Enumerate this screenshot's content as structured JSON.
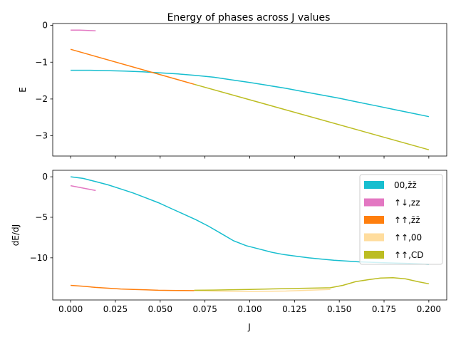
{
  "chart_data": [
    {
      "type": "line",
      "title": "Energy of phases across J values",
      "xlabel": "",
      "ylabel": "E",
      "xlim": [
        -0.01,
        0.21
      ],
      "ylim": [
        -3.55,
        0.05
      ],
      "xticks": [
        0.0,
        0.025,
        0.05,
        0.075,
        0.1,
        0.125,
        0.15,
        0.175,
        0.2
      ],
      "yticks": [
        0,
        -1,
        -2,
        -3
      ],
      "ytick_labels": [
        "0",
        "−1",
        "−2",
        "−3"
      ],
      "series": [
        {
          "color": "#17becf",
          "x": [
            0.0,
            0.01,
            0.02,
            0.03,
            0.04,
            0.05,
            0.06,
            0.07,
            0.08,
            0.09,
            0.1,
            0.11,
            0.12,
            0.13,
            0.14,
            0.15,
            0.16,
            0.17,
            0.18,
            0.19,
            0.2
          ],
          "y": [
            -1.22,
            -1.22,
            -1.23,
            -1.24,
            -1.26,
            -1.29,
            -1.32,
            -1.36,
            -1.41,
            -1.48,
            -1.55,
            -1.63,
            -1.71,
            -1.8,
            -1.89,
            -1.98,
            -2.08,
            -2.18,
            -2.28,
            -2.38,
            -2.48
          ]
        },
        {
          "color": "#e377c2",
          "x": [
            0.0,
            0.005,
            0.01,
            0.014
          ],
          "y": [
            -0.13,
            -0.13,
            -0.14,
            -0.15
          ]
        },
        {
          "color": "#ff7f0e",
          "x": [
            0.0,
            0.069
          ],
          "y": [
            -0.65,
            -1.6
          ]
        },
        {
          "color": "#bcbd22",
          "x": [
            0.069,
            0.2
          ],
          "y": [
            -1.6,
            -3.38
          ]
        }
      ]
    },
    {
      "type": "line",
      "title": "",
      "xlabel": "J",
      "ylabel": "dE/dJ",
      "xlim": [
        -0.01,
        0.21
      ],
      "ylim": [
        -15.2,
        0.8
      ],
      "xticks": [
        0.0,
        0.025,
        0.05,
        0.075,
        0.1,
        0.125,
        0.15,
        0.175,
        0.2
      ],
      "xtick_labels": [
        "0.000",
        "0.025",
        "0.050",
        "0.075",
        "0.100",
        "0.125",
        "0.150",
        "0.175",
        "0.200"
      ],
      "yticks": [
        0,
        -5,
        -10
      ],
      "ytick_labels": [
        "0",
        "−5",
        "−10"
      ],
      "legend": {
        "position": "top-right",
        "entries": [
          {
            "label": "00,z̄z̄",
            "color": "#17becf"
          },
          {
            "label": "↑↓,zz",
            "color": "#e377c2"
          },
          {
            "label": "↑↑,z̄z̄",
            "color": "#ff7f0e"
          },
          {
            "label": "↑↑,00",
            "color": "#ffdd9e"
          },
          {
            "label": "↑↑,CD",
            "color": "#bcbd22"
          }
        ]
      },
      "series": [
        {
          "color": "#17becf",
          "x": [
            0.0,
            0.007,
            0.014,
            0.021,
            0.028,
            0.035,
            0.042,
            0.049,
            0.056,
            0.063,
            0.07,
            0.077,
            0.084,
            0.091,
            0.098,
            0.105,
            0.112,
            0.119,
            0.126,
            0.133,
            0.14,
            0.147,
            0.154,
            0.161,
            0.168,
            0.175,
            0.182,
            0.189,
            0.2
          ],
          "y": [
            0.0,
            -0.2,
            -0.6,
            -1.0,
            -1.5,
            -2.0,
            -2.6,
            -3.2,
            -3.9,
            -4.6,
            -5.3,
            -6.1,
            -7.0,
            -7.9,
            -8.5,
            -8.9,
            -9.3,
            -9.6,
            -9.8,
            -10.0,
            -10.15,
            -10.3,
            -10.4,
            -10.5,
            -10.55,
            -10.6,
            -10.65,
            -10.7,
            -10.8
          ]
        },
        {
          "color": "#e377c2",
          "x": [
            0.0,
            0.007,
            0.014
          ],
          "y": [
            -1.1,
            -1.4,
            -1.7
          ]
        },
        {
          "color": "#ff7f0e",
          "x": [
            0.0,
            0.007,
            0.014,
            0.021,
            0.028,
            0.035,
            0.042,
            0.049,
            0.056,
            0.063,
            0.069
          ],
          "y": [
            -13.4,
            -13.5,
            -13.65,
            -13.75,
            -13.85,
            -13.9,
            -13.95,
            -14.0,
            -14.02,
            -14.04,
            -14.05
          ]
        },
        {
          "color": "#ffdd9e",
          "x": [
            0.069,
            0.08,
            0.1,
            0.12,
            0.145
          ],
          "y": [
            -14.05,
            -14.1,
            -14.15,
            -14.1,
            -13.9
          ]
        },
        {
          "color": "#bcbd22",
          "x": [
            0.069,
            0.08,
            0.1,
            0.12,
            0.145,
            0.152,
            0.159,
            0.166,
            0.173,
            0.18,
            0.187,
            0.194,
            0.2
          ],
          "y": [
            -14.0,
            -13.98,
            -13.9,
            -13.8,
            -13.7,
            -13.4,
            -12.95,
            -12.7,
            -12.5,
            -12.45,
            -12.6,
            -12.95,
            -13.2
          ]
        }
      ]
    }
  ]
}
